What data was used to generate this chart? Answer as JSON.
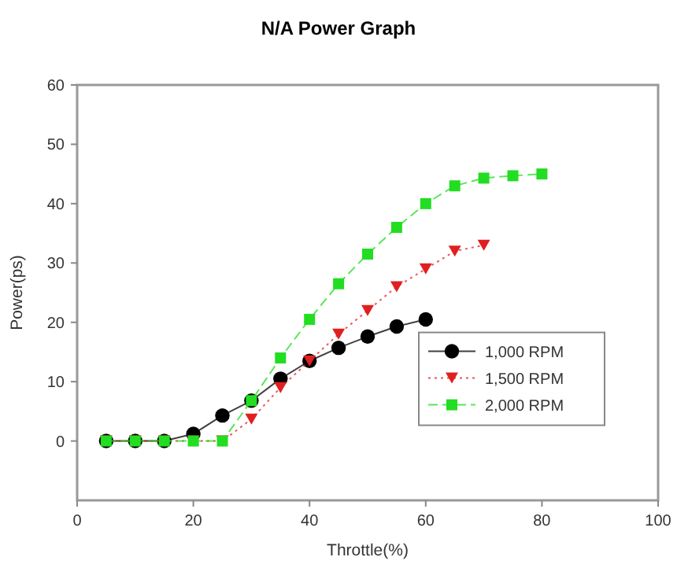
{
  "chart_data": {
    "type": "line",
    "title": "N/A Power Graph",
    "xlabel": "Throttle(%)",
    "ylabel": "Power(ps)",
    "xlim": [
      0,
      100
    ],
    "xticks": [
      0,
      20,
      40,
      60,
      80,
      100
    ],
    "ylim": [
      -10,
      60
    ],
    "yticks": [
      0,
      10,
      20,
      30,
      40,
      50,
      60
    ],
    "grid": false,
    "legend": "bottom right",
    "series": [
      {
        "name": "1,000 RPM",
        "color": "#000000",
        "marker": "circle",
        "line_style": "solid",
        "x": [
          5,
          10,
          15,
          20,
          25,
          30,
          35,
          40,
          45,
          50,
          55,
          60
        ],
        "values": [
          0,
          0,
          0,
          1.2,
          4.3,
          6.8,
          10.5,
          13.5,
          15.7,
          17.6,
          19.3,
          20.5
        ]
      },
      {
        "name": "1,500 RPM",
        "color": "#e02020",
        "marker": "triangle",
        "line_style": "dotted",
        "x": [
          5,
          10,
          15,
          20,
          25,
          30,
          35,
          40,
          45,
          50,
          55,
          60,
          65,
          70
        ],
        "values": [
          0,
          0,
          0,
          0,
          0,
          3.7,
          9,
          13.5,
          18,
          22,
          26,
          29,
          32,
          33
        ]
      },
      {
        "name": "2,000 RPM",
        "color": "#22dd22",
        "marker": "square",
        "line_style": "dashed",
        "x": [
          5,
          10,
          15,
          20,
          25,
          30,
          35,
          40,
          45,
          50,
          55,
          60,
          65,
          70,
          75,
          80
        ],
        "values": [
          0,
          0,
          0,
          0,
          0,
          6.8,
          14,
          20.5,
          26.5,
          31.5,
          36,
          40,
          43,
          44.3,
          44.7,
          45
        ]
      }
    ]
  }
}
